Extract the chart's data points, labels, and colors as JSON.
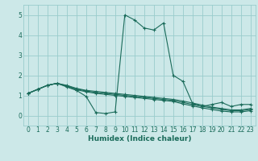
{
  "xlabel": "Humidex (Indice chaleur)",
  "bg_color": "#cce8e8",
  "grid_color": "#99cccc",
  "line_color": "#1a6b5a",
  "xlim": [
    -0.5,
    23.5
  ],
  "ylim": [
    -0.5,
    5.5
  ],
  "xticks": [
    0,
    1,
    2,
    3,
    4,
    5,
    6,
    7,
    8,
    9,
    10,
    11,
    12,
    13,
    14,
    15,
    16,
    17,
    18,
    19,
    20,
    21,
    22,
    23
  ],
  "yticks": [
    0,
    1,
    2,
    3,
    4,
    5
  ],
  "lines": [
    {
      "x": [
        0,
        1,
        2,
        3,
        4,
        5,
        6,
        7,
        8,
        9,
        10,
        11,
        12,
        13,
        14,
        15,
        16,
        17,
        18,
        19,
        20,
        21,
        22,
        23
      ],
      "y": [
        1.1,
        1.3,
        1.5,
        1.6,
        1.5,
        1.35,
        1.25,
        1.2,
        1.15,
        1.1,
        1.05,
        1.0,
        0.95,
        0.9,
        0.85,
        0.8,
        0.72,
        0.62,
        0.52,
        0.42,
        0.35,
        0.28,
        0.28,
        0.35
      ]
    },
    {
      "x": [
        0,
        1,
        2,
        3,
        4,
        5,
        6,
        7,
        8,
        9,
        10,
        11,
        12,
        13,
        14,
        15,
        16,
        17,
        18,
        19,
        20,
        21,
        22,
        23
      ],
      "y": [
        1.1,
        1.3,
        1.5,
        1.6,
        1.48,
        1.32,
        1.22,
        1.15,
        1.1,
        1.05,
        1.0,
        0.95,
        0.9,
        0.85,
        0.8,
        0.75,
        0.65,
        0.55,
        0.45,
        0.38,
        0.3,
        0.24,
        0.24,
        0.3
      ]
    },
    {
      "x": [
        0,
        1,
        2,
        3,
        4,
        5,
        6,
        7,
        8,
        9,
        10,
        11,
        12,
        13,
        14,
        15,
        16,
        17,
        18,
        19,
        20,
        21,
        22,
        23
      ],
      "y": [
        1.1,
        1.3,
        1.5,
        1.6,
        1.45,
        1.28,
        1.18,
        1.1,
        1.05,
        1.0,
        0.95,
        0.9,
        0.85,
        0.8,
        0.75,
        0.7,
        0.58,
        0.48,
        0.38,
        0.3,
        0.22,
        0.18,
        0.18,
        0.24
      ]
    },
    {
      "x": [
        0,
        1,
        2,
        3,
        4,
        5,
        6,
        7,
        8,
        9,
        10,
        11,
        12,
        13,
        14,
        15,
        16,
        17,
        18,
        19,
        20,
        21,
        22,
        23
      ],
      "y": [
        1.1,
        1.3,
        1.5,
        1.6,
        1.42,
        1.25,
        0.95,
        0.15,
        0.1,
        0.18,
        5.0,
        4.75,
        4.35,
        4.25,
        4.6,
        2.0,
        1.7,
        0.6,
        0.45,
        0.55,
        0.65,
        0.45,
        0.55,
        0.55
      ]
    }
  ]
}
